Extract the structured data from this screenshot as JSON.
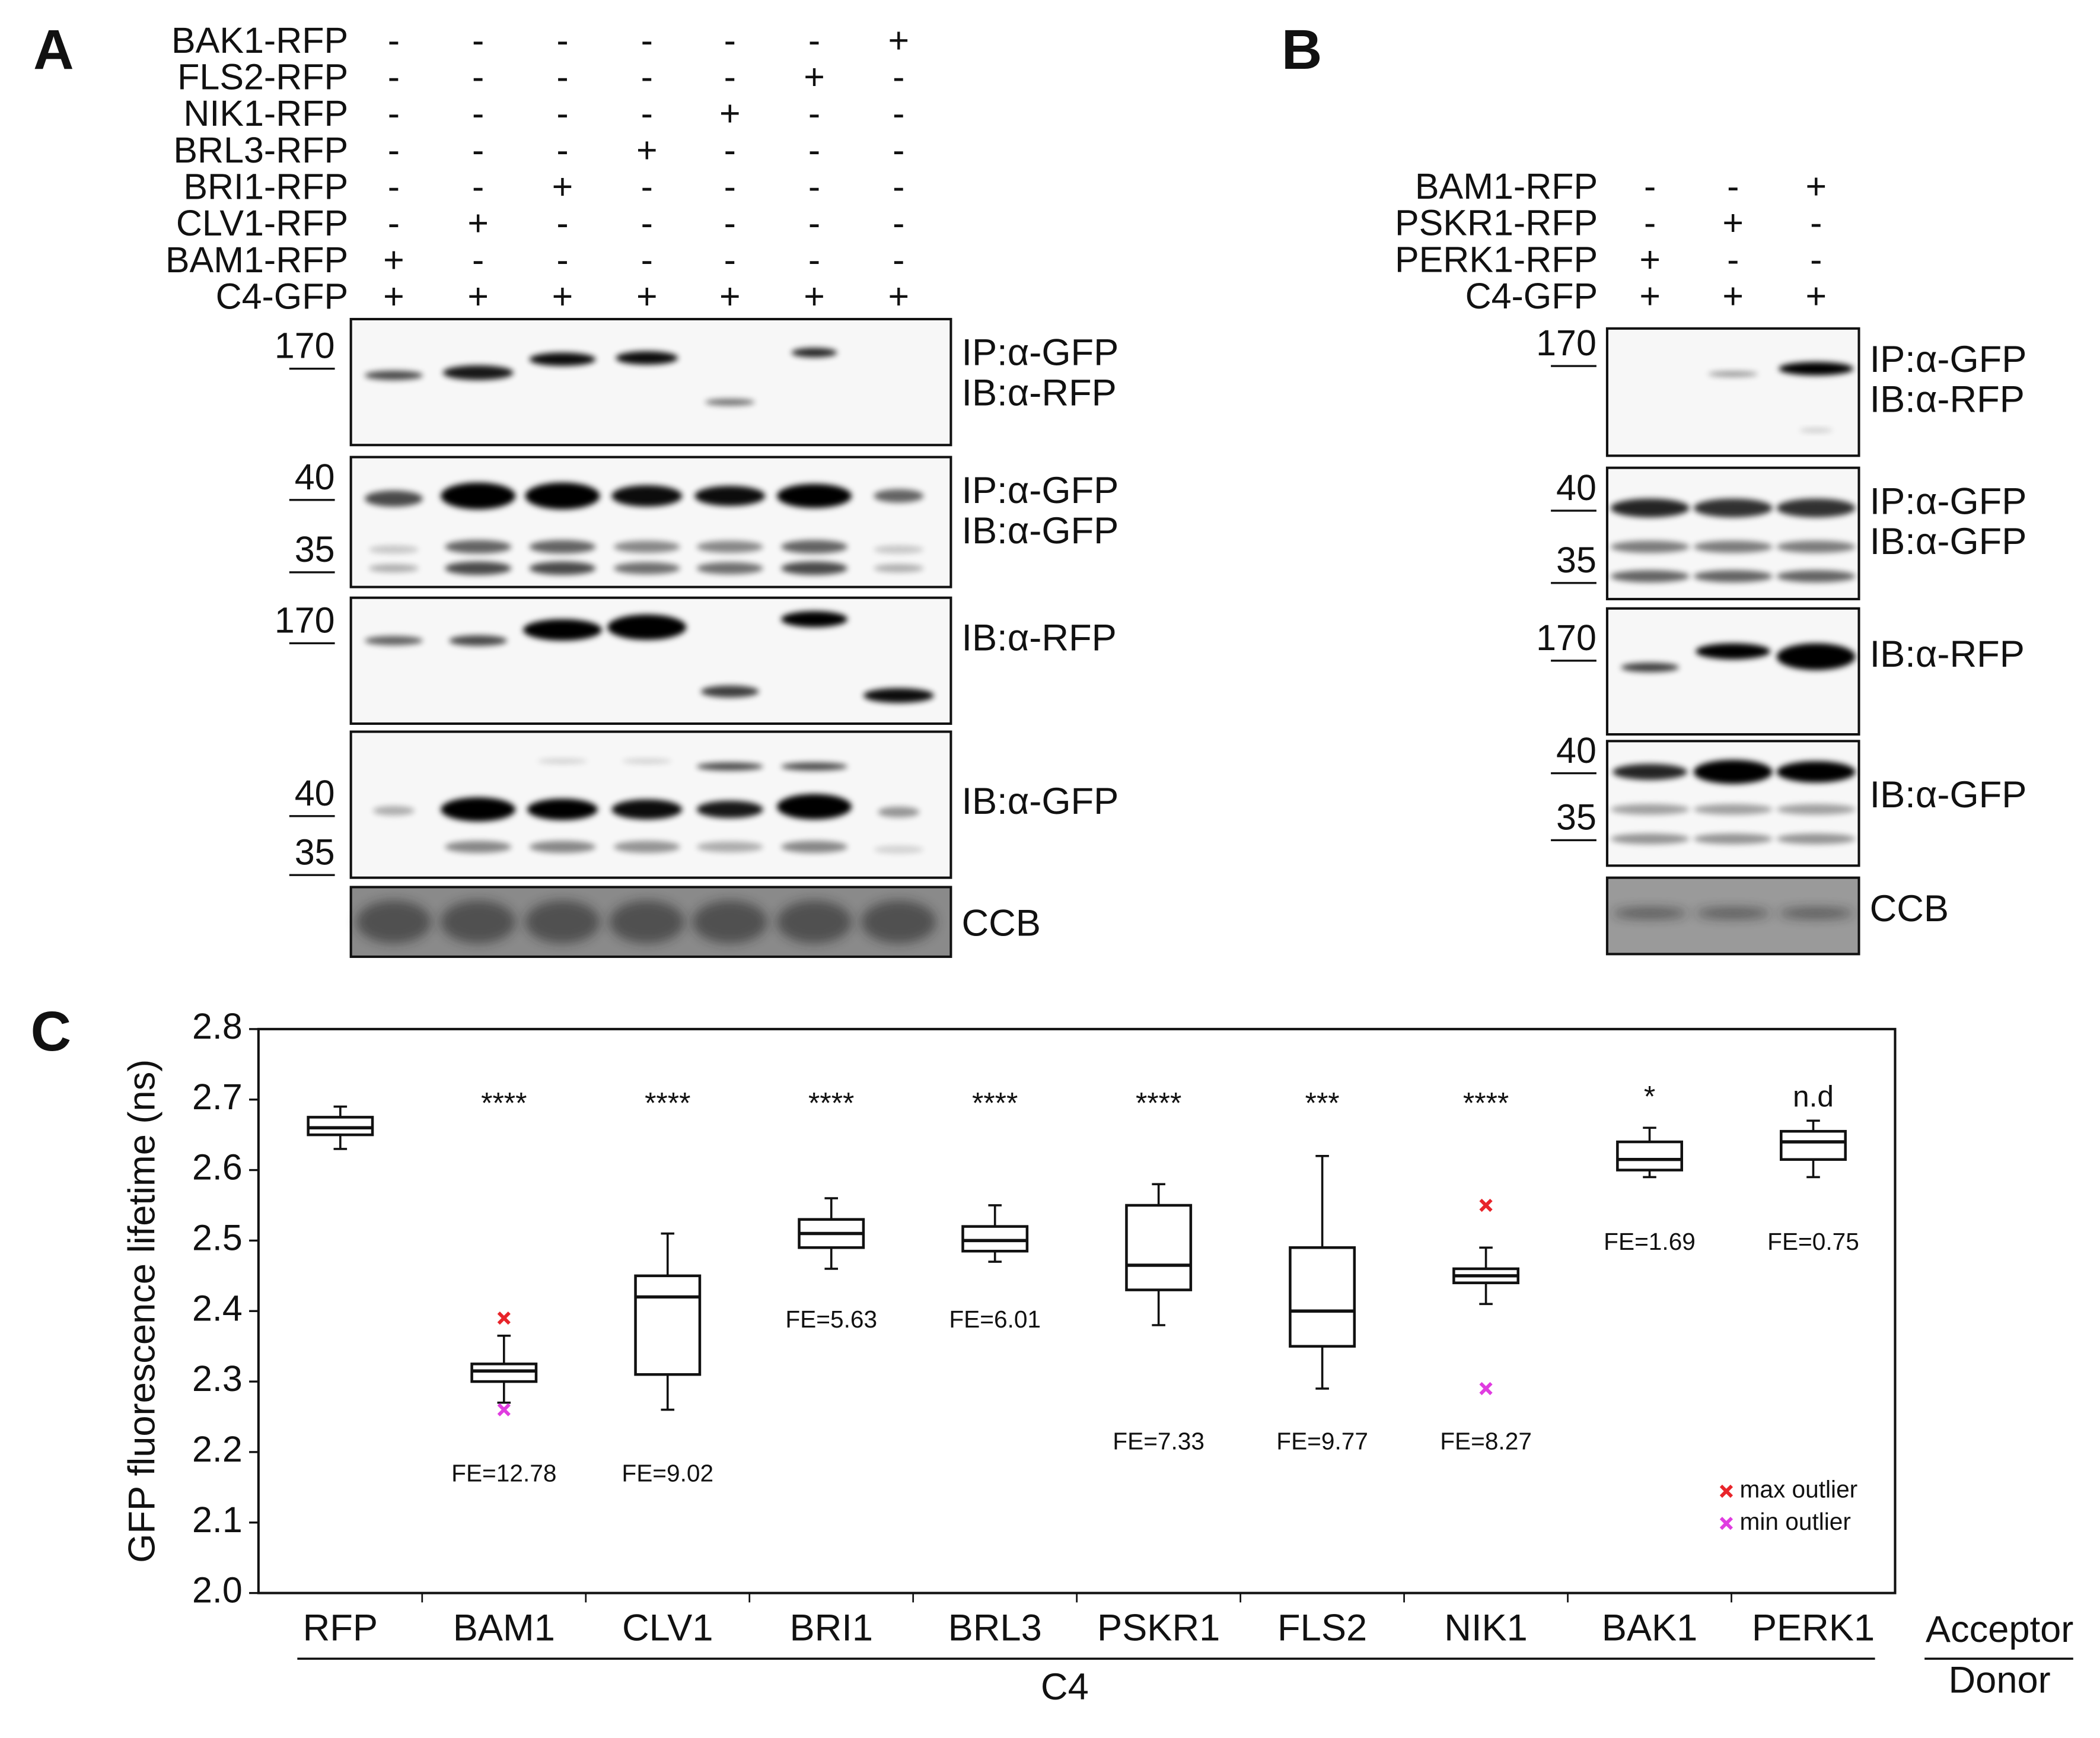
{
  "panel_a": {
    "label": "A",
    "conditions": [
      {
        "name": "BAK1-RFP",
        "signs": [
          "-",
          "-",
          "-",
          "-",
          "-",
          "-",
          "+"
        ]
      },
      {
        "name": "FLS2-RFP",
        "signs": [
          "-",
          "-",
          "-",
          "-",
          "-",
          "+",
          "-"
        ]
      },
      {
        "name": "NIK1-RFP",
        "signs": [
          "-",
          "-",
          "-",
          "-",
          "+",
          "-",
          "-"
        ]
      },
      {
        "name": "BRL3-RFP",
        "signs": [
          "-",
          "-",
          "-",
          "+",
          "-",
          "-",
          "-"
        ]
      },
      {
        "name": "BRI1-RFP",
        "signs": [
          "-",
          "-",
          "+",
          "-",
          "-",
          "-",
          "-"
        ]
      },
      {
        "name": "CLV1-RFP",
        "signs": [
          "-",
          "+",
          "-",
          "-",
          "-",
          "-",
          "-"
        ]
      },
      {
        "name": "BAM1-RFP",
        "signs": [
          "+",
          "-",
          "-",
          "-",
          "-",
          "-",
          "-"
        ]
      },
      {
        "name": "C4-GFP",
        "signs": [
          "+",
          "+",
          "+",
          "+",
          "+",
          "+",
          "+"
        ]
      }
    ],
    "blots": [
      {
        "markers": [
          "170"
        ],
        "labels": [
          "IP:α-GFP",
          "IB:α-RFP"
        ]
      },
      {
        "markers": [
          "40",
          "35"
        ],
        "labels": [
          "IP:α-GFP",
          "IB:α-GFP"
        ]
      },
      {
        "markers": [
          "170"
        ],
        "labels": [
          "IB:α-RFP"
        ]
      },
      {
        "markers": [
          "40",
          "35"
        ],
        "labels": [
          "IB:α-GFP"
        ]
      },
      {
        "markers": [],
        "labels": [
          "CCB"
        ]
      }
    ]
  },
  "panel_b": {
    "label": "B",
    "conditions": [
      {
        "name": "BAM1-RFP",
        "signs": [
          "-",
          "-",
          "+"
        ]
      },
      {
        "name": "PSKR1-RFP",
        "signs": [
          "-",
          "+",
          "-"
        ]
      },
      {
        "name": "PERK1-RFP",
        "signs": [
          "+",
          "-",
          "-"
        ]
      },
      {
        "name": "C4-GFP",
        "signs": [
          "+",
          "+",
          "+"
        ]
      }
    ],
    "blots": [
      {
        "markers": [
          "170"
        ],
        "labels": [
          "IP:α-GFP",
          "IB:α-RFP"
        ]
      },
      {
        "markers": [
          "40",
          "35"
        ],
        "labels": [
          "IP:α-GFP",
          "IB:α-GFP"
        ]
      },
      {
        "markers": [
          "170"
        ],
        "labels": [
          "IB:α-RFP"
        ]
      },
      {
        "markers": [
          "40",
          "35"
        ],
        "labels": [
          "IB:α-GFP"
        ]
      },
      {
        "markers": [],
        "labels": [
          "CCB"
        ]
      }
    ]
  },
  "chart_data": {
    "type": "box",
    "panel_label": "C",
    "ylabel": "GFP fluorescence lifetime (ns)",
    "xlabel": "C4",
    "acceptor_label": "Acceptor",
    "donor_label": "Donor",
    "categories": [
      "RFP",
      "BAM1",
      "CLV1",
      "BRI1",
      "BRL3",
      "PSKR1",
      "FLS2",
      "NIK1",
      "BAK1",
      "PERK1"
    ],
    "boxes": [
      {
        "whislo": 2.63,
        "q1": 2.65,
        "median": 2.66,
        "q3": 2.675,
        "whishi": 2.69
      },
      {
        "whislo": 2.27,
        "q1": 2.3,
        "median": 2.315,
        "q3": 2.325,
        "whishi": 2.365
      },
      {
        "whislo": 2.26,
        "q1": 2.31,
        "median": 2.42,
        "q3": 2.45,
        "whishi": 2.51
      },
      {
        "whislo": 2.46,
        "q1": 2.49,
        "median": 2.51,
        "q3": 2.53,
        "whishi": 2.56
      },
      {
        "whislo": 2.47,
        "q1": 2.485,
        "median": 2.5,
        "q3": 2.52,
        "whishi": 2.55
      },
      {
        "whislo": 2.38,
        "q1": 2.43,
        "median": 2.465,
        "q3": 2.55,
        "whishi": 2.58
      },
      {
        "whislo": 2.29,
        "q1": 2.35,
        "median": 2.4,
        "q3": 2.49,
        "whishi": 2.62
      },
      {
        "whislo": 2.41,
        "q1": 2.44,
        "median": 2.45,
        "q3": 2.46,
        "whishi": 2.49
      },
      {
        "whislo": 2.59,
        "q1": 2.6,
        "median": 2.615,
        "q3": 2.64,
        "whishi": 2.66
      },
      {
        "whislo": 2.59,
        "q1": 2.615,
        "median": 2.64,
        "q3": 2.655,
        "whishi": 2.67
      }
    ],
    "outliers": [
      {
        "name": "max outlier",
        "color": "#e8242a",
        "values": [
          null,
          2.39,
          null,
          null,
          null,
          null,
          null,
          2.55,
          null,
          null
        ]
      },
      {
        "name": "min outlier",
        "color": "#e03ce0",
        "values": [
          null,
          2.26,
          null,
          null,
          null,
          null,
          null,
          2.29,
          null,
          null
        ]
      }
    ],
    "significance": [
      null,
      "****",
      "****",
      "****",
      "****",
      "****",
      "***",
      "****",
      "*",
      "n.d"
    ],
    "fe_labels": [
      null,
      "FE=12.78",
      "FE=9.02",
      "FE=5.63",
      "FE=6.01",
      "FE=7.33",
      "FE=9.77",
      "FE=8.27",
      "FE=1.69",
      "FE=0.75"
    ],
    "ylim": [
      2.0,
      2.8
    ],
    "yticks": [
      {
        "value": 2.0,
        "label": "2.0"
      },
      2.1,
      2.2,
      2.3,
      2.4,
      2.5,
      2.6,
      2.7,
      2.8
    ],
    "legend": "lower right"
  }
}
